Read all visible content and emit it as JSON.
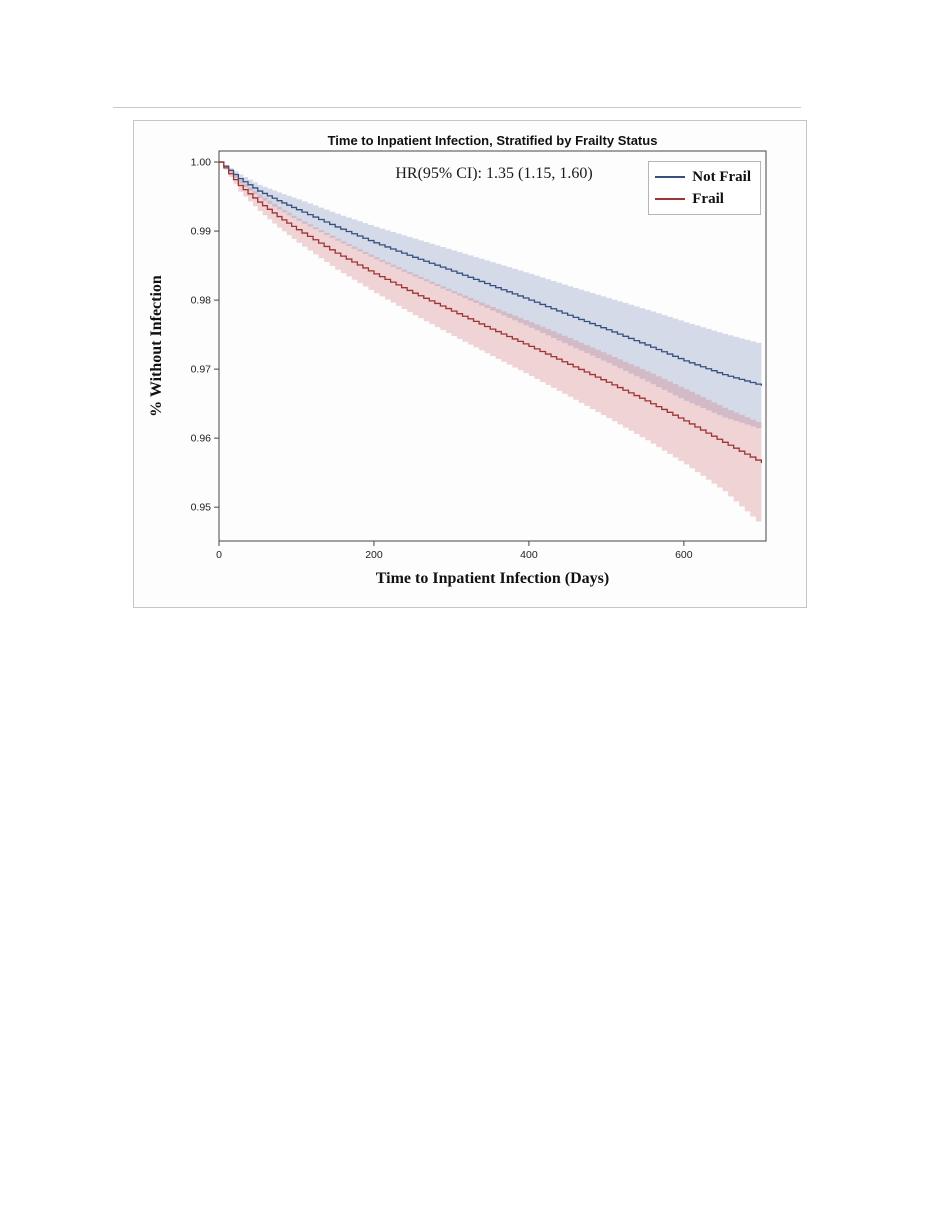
{
  "page": {
    "background_color": "#ffffff",
    "panel_border_color": "#c6c6c6"
  },
  "chart_data": {
    "type": "line",
    "subtype": "kaplan-meier-survival",
    "title": "Time to Inpatient Infection, Stratified by Frailty Status",
    "annotation": "HR(95% CI): 1.35 (1.15, 1.60)",
    "xlabel": "Time to Inpatient Infection (Days)",
    "ylabel": "% Without Infection",
    "xlim": [
      0,
      706
    ],
    "ylim": [
      0.9451,
      1.0016
    ],
    "grid": false,
    "legend_position": "inside-top-right",
    "frame_color": "#454545",
    "xticks": [
      {
        "v": 0,
        "label": "0"
      },
      {
        "v": 200,
        "label": "200"
      },
      {
        "v": 400,
        "label": "400"
      },
      {
        "v": 600,
        "label": "600"
      }
    ],
    "yticks": [
      {
        "v": 1.0,
        "label": "1.00"
      },
      {
        "v": 0.99,
        "label": "0.99"
      },
      {
        "v": 0.98,
        "label": "0.98"
      },
      {
        "v": 0.97,
        "label": "0.97"
      },
      {
        "v": 0.96,
        "label": "0.96"
      },
      {
        "v": 0.95,
        "label": "0.95"
      }
    ],
    "series": [
      {
        "name": "Not Frail",
        "color": "#37507f",
        "band_color": "rgba(120,140,185,0.30)",
        "t": [
          0,
          25,
          50,
          75,
          100,
          150,
          200,
          250,
          300,
          350,
          400,
          450,
          500,
          550,
          600,
          650,
          700
        ],
        "surv": [
          1.0,
          0.9976,
          0.9958,
          0.9944,
          0.9931,
          0.9906,
          0.9883,
          0.9862,
          0.9842,
          0.9821,
          0.98,
          0.9778,
          0.9757,
          0.9735,
          0.9712,
          0.9692,
          0.9676
        ],
        "upper": [
          1.0,
          0.9982,
          0.9967,
          0.9956,
          0.9946,
          0.9925,
          0.9906,
          0.9889,
          0.9872,
          0.9855,
          0.9838,
          0.982,
          0.9803,
          0.9786,
          0.9768,
          0.9751,
          0.9736
        ],
        "lower": [
          1.0,
          0.9969,
          0.9948,
          0.9931,
          0.9915,
          0.9886,
          0.9859,
          0.9834,
          0.981,
          0.9785,
          0.976,
          0.9734,
          0.9709,
          0.9682,
          0.9654,
          0.963,
          0.9612
        ]
      },
      {
        "name": "Frail",
        "color": "#9e3434",
        "band_color": "rgba(205,105,110,0.28)",
        "t": [
          0,
          25,
          50,
          75,
          100,
          150,
          200,
          250,
          300,
          350,
          400,
          450,
          500,
          550,
          600,
          650,
          700
        ],
        "surv": [
          1.0,
          0.9966,
          0.9942,
          0.9921,
          0.9902,
          0.9868,
          0.9838,
          0.981,
          0.9784,
          0.9758,
          0.9733,
          0.9707,
          0.9681,
          0.9654,
          0.9625,
          0.9594,
          0.9564
        ],
        "upper": [
          1.0,
          0.9974,
          0.9953,
          0.9935,
          0.9918,
          0.9889,
          0.9862,
          0.9837,
          0.9813,
          0.979,
          0.9768,
          0.9745,
          0.9721,
          0.9697,
          0.9671,
          0.9644,
          0.962
        ],
        "lower": [
          1.0,
          0.9957,
          0.9929,
          0.9905,
          0.9883,
          0.9844,
          0.981,
          0.9778,
          0.9748,
          0.9719,
          0.969,
          0.966,
          0.9629,
          0.9597,
          0.9562,
          0.9523,
          0.9472
        ]
      }
    ]
  }
}
